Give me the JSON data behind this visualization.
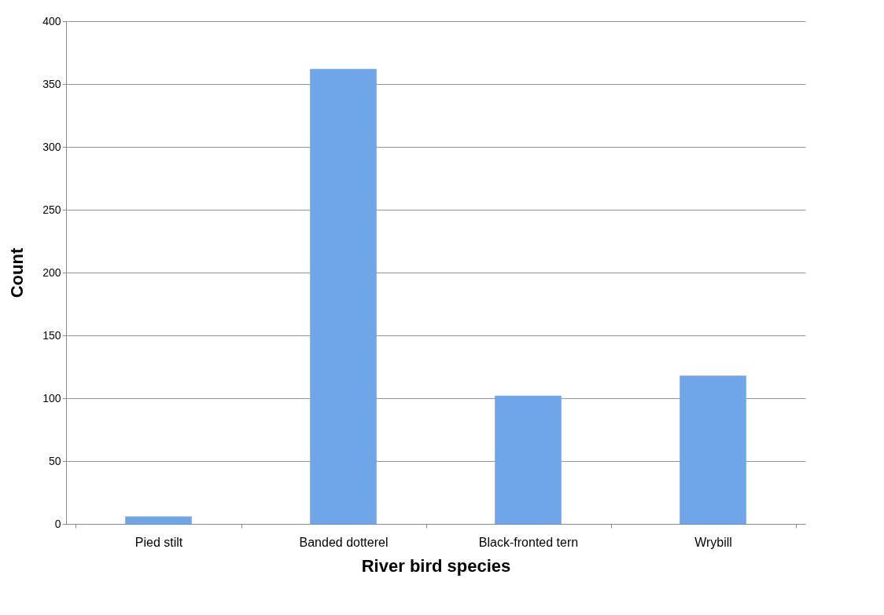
{
  "chart_data": {
    "type": "bar",
    "xlabel": "River bird species",
    "ylabel": "Count",
    "categories": [
      "Pied stilt",
      "Banded dotterel",
      "Black-fronted tern",
      "Wrybill"
    ],
    "values": [
      6,
      362,
      102,
      118
    ],
    "color": "#6ea6e8",
    "ylim": [
      0,
      400
    ],
    "yticks": [
      0,
      50,
      100,
      150,
      200,
      250,
      300,
      350,
      400
    ],
    "grid": "y"
  }
}
